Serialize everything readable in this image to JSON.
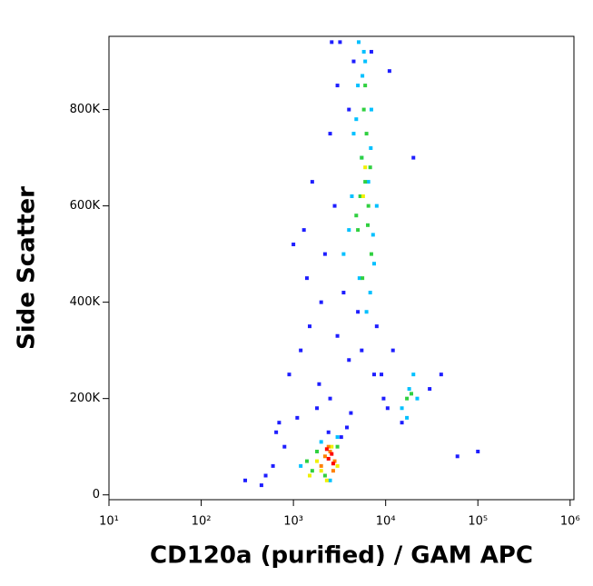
{
  "chart_data": {
    "type": "scatter",
    "x_label": "CD120a (purified) / GAM APC",
    "y_label": "Side Scatter",
    "xscale": "log",
    "xlim": [
      10,
      1100000
    ],
    "ylim": [
      -10000,
      952000
    ],
    "xticks": [
      {
        "value": 10,
        "label": "10¹"
      },
      {
        "value": 100,
        "label": "10²"
      },
      {
        "value": 1000,
        "label": "10³"
      },
      {
        "value": 10000,
        "label": "10⁴"
      },
      {
        "value": 100000,
        "label": "10⁵"
      },
      {
        "value": 1000000,
        "label": "10⁶"
      }
    ],
    "yticks": [
      0,
      {
        "value": 200000,
        "label": "200K"
      },
      {
        "value": 400000,
        "label": "400K"
      },
      {
        "value": 600000,
        "label": "600K"
      },
      {
        "value": 800000,
        "label": "800K"
      }
    ],
    "series": [
      {
        "color": "#1e1eff",
        "x": [
          300,
          450,
          600,
          800,
          900,
          1200,
          700,
          500,
          1500,
          2000,
          3500,
          5000,
          8000,
          12000,
          9000,
          2500,
          1800,
          1100,
          650,
          15000,
          30000,
          40000,
          60000,
          100000,
          1400,
          1000,
          2200,
          2800,
          4000,
          3000,
          2500,
          1600,
          1300,
          1900,
          4500,
          7000,
          11000,
          20000,
          3200,
          2600,
          3000,
          4000,
          5500,
          7500,
          9500,
          10500,
          2400,
          3300,
          3800,
          4200
        ],
        "y": [
          30000,
          20000,
          60000,
          100000,
          250000,
          300000,
          150000,
          40000,
          350000,
          400000,
          420000,
          380000,
          350000,
          300000,
          250000,
          200000,
          180000,
          160000,
          130000,
          150000,
          220000,
          250000,
          80000,
          90000,
          450000,
          520000,
          500000,
          600000,
          800000,
          850000,
          750000,
          650000,
          550000,
          230000,
          900000,
          920000,
          880000,
          700000,
          940000,
          940000,
          330000,
          280000,
          300000,
          250000,
          200000,
          180000,
          130000,
          120000,
          140000,
          170000
        ]
      },
      {
        "color": "#00c0ff",
        "x": [
          5000,
          6000,
          7000,
          4500,
          5500,
          6500,
          8000,
          4000,
          3500,
          5200,
          6800,
          7500,
          6200,
          5800,
          4800,
          1500,
          2000,
          1200,
          3000,
          2500,
          15000,
          18000,
          20000,
          17000,
          22000,
          4300,
          5600,
          6900,
          7300,
          5100
        ],
        "y": [
          850000,
          900000,
          800000,
          750000,
          700000,
          650000,
          600000,
          550000,
          500000,
          450000,
          420000,
          480000,
          380000,
          920000,
          780000,
          40000,
          110000,
          60000,
          120000,
          30000,
          180000,
          220000,
          250000,
          160000,
          200000,
          620000,
          870000,
          720000,
          540000,
          940000
        ]
      },
      {
        "color": "#30d040",
        "x": [
          5500,
          6000,
          6500,
          5000,
          7000,
          6200,
          5800,
          5300,
          6800,
          4800,
          1600,
          1800,
          2200,
          1400,
          3000,
          17000,
          19000,
          6000,
          5600,
          6400
        ],
        "y": [
          700000,
          650000,
          600000,
          550000,
          500000,
          750000,
          800000,
          620000,
          680000,
          580000,
          50000,
          90000,
          40000,
          70000,
          100000,
          200000,
          210000,
          850000,
          450000,
          560000
        ]
      },
      {
        "color": "#f0f000",
        "x": [
          1800,
          2000,
          2600,
          1500,
          6000,
          5700,
          2300,
          3000
        ],
        "y": [
          70000,
          50000,
          100000,
          40000,
          680000,
          620000,
          30000,
          60000
        ]
      },
      {
        "color": "#ff8000",
        "x": [
          2200,
          2500,
          2800,
          2000,
          2400,
          2700
        ],
        "y": [
          80000,
          90000,
          70000,
          60000,
          100000,
          50000
        ]
      },
      {
        "color": "#ff0000",
        "x": [
          2400,
          2600,
          2300,
          2700
        ],
        "y": [
          75000,
          85000,
          95000,
          65000
        ]
      }
    ]
  }
}
